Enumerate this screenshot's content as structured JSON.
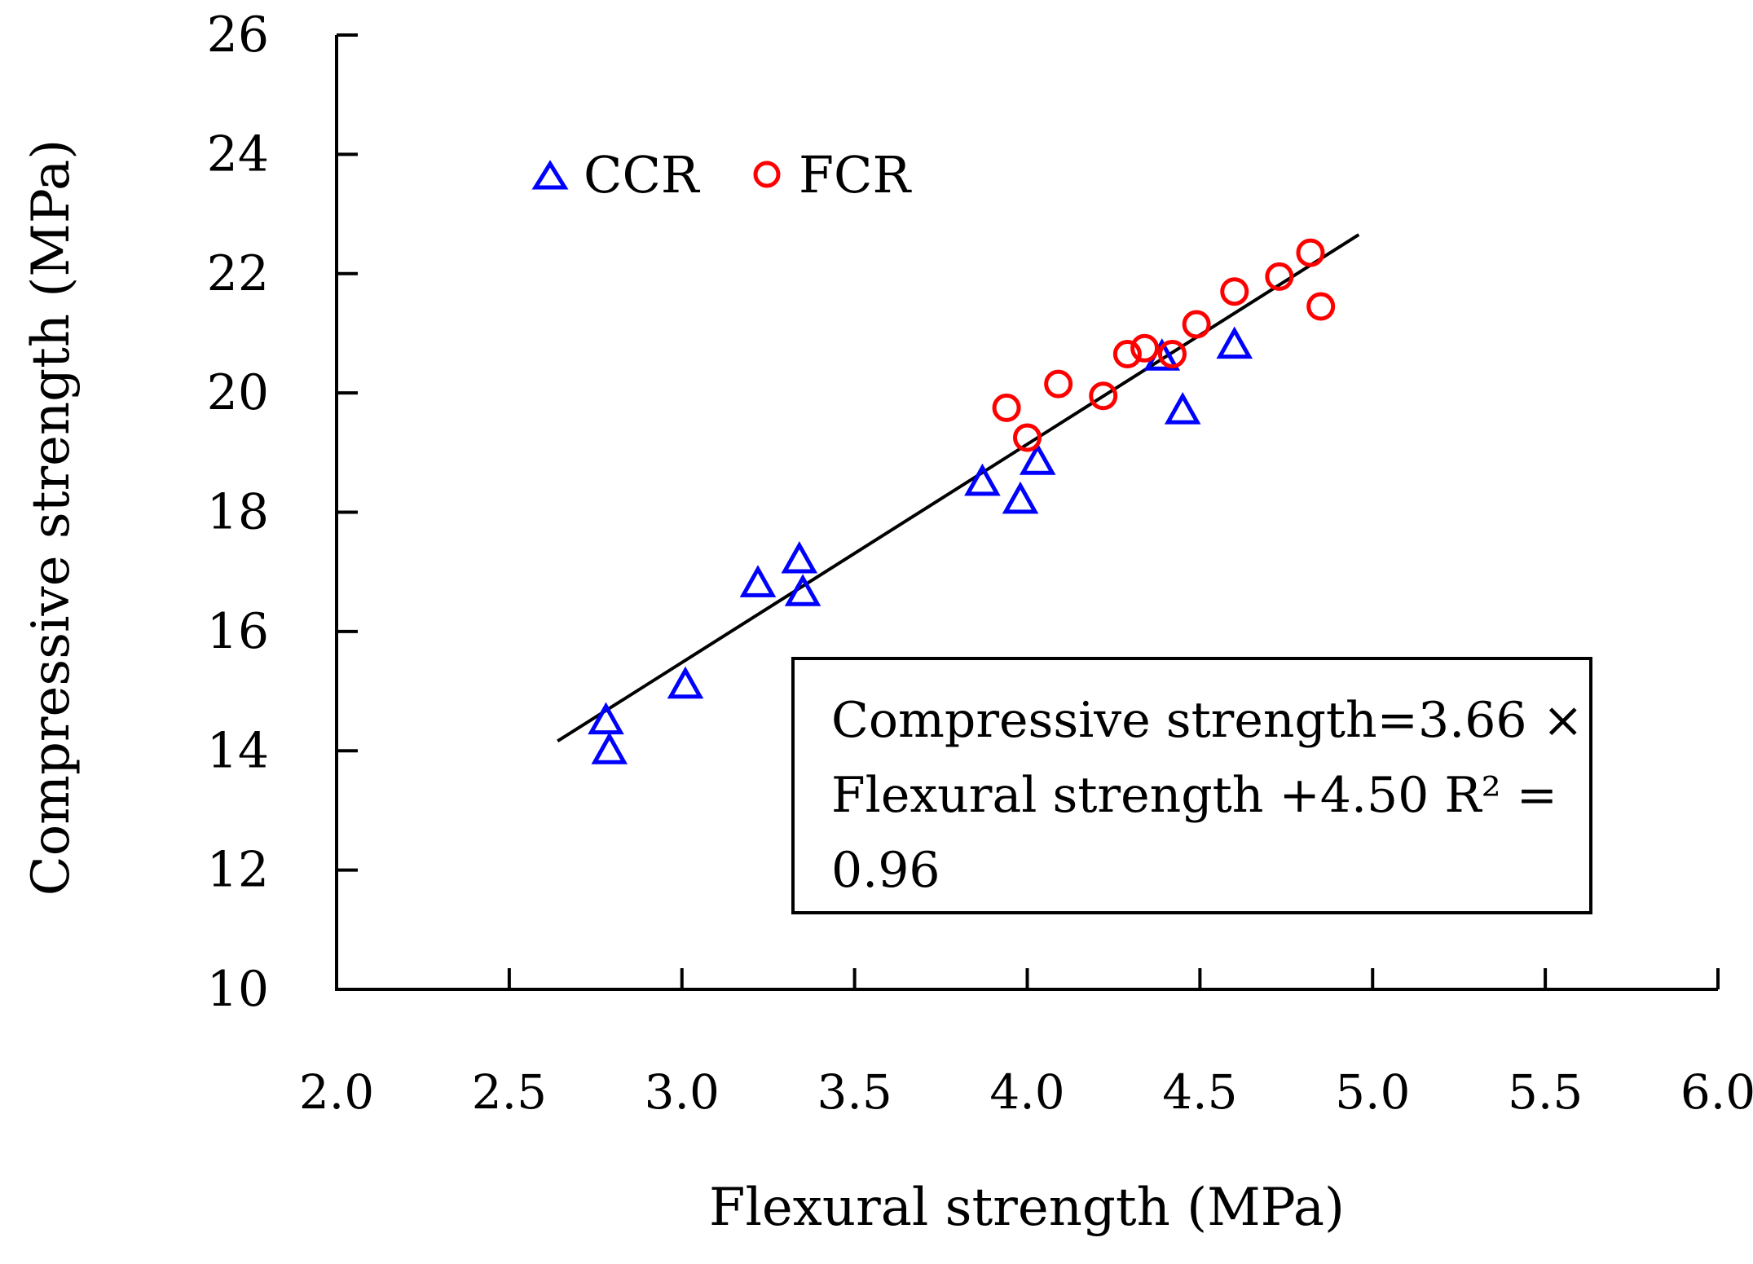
{
  "chart_data": {
    "type": "scatter",
    "title": "",
    "xlabel": "Flexural strength (MPa)",
    "ylabel": "Compressive strength (MPa)",
    "xlim": [
      2.0,
      6.0
    ],
    "ylim": [
      10,
      26
    ],
    "xticks": [
      "2.0",
      "2.5",
      "3.0",
      "3.5",
      "4.0",
      "4.5",
      "5.0",
      "5.5",
      "6.0"
    ],
    "yticks": [
      "10",
      "12",
      "14",
      "16",
      "18",
      "20",
      "22",
      "24",
      "26"
    ],
    "grid": false,
    "legend_position": "top-left",
    "series": [
      {
        "name": "CCR",
        "marker": "triangle",
        "color": "#0000ff",
        "points": [
          [
            2.78,
            14.5
          ],
          [
            2.79,
            14.0
          ],
          [
            3.01,
            15.1
          ],
          [
            3.22,
            16.8
          ],
          [
            3.34,
            17.2
          ],
          [
            3.35,
            16.65
          ],
          [
            3.87,
            18.5
          ],
          [
            3.98,
            18.2
          ],
          [
            4.03,
            18.85
          ],
          [
            4.39,
            20.6
          ],
          [
            4.45,
            19.7
          ],
          [
            4.6,
            20.8
          ]
        ]
      },
      {
        "name": "FCR",
        "marker": "circle",
        "color": "#ff0000",
        "points": [
          [
            3.94,
            19.75
          ],
          [
            4.0,
            19.25
          ],
          [
            4.09,
            20.15
          ],
          [
            4.22,
            19.95
          ],
          [
            4.29,
            20.65
          ],
          [
            4.34,
            20.75
          ],
          [
            4.42,
            20.65
          ],
          [
            4.49,
            21.15
          ],
          [
            4.6,
            21.7
          ],
          [
            4.73,
            21.95
          ],
          [
            4.82,
            22.35
          ],
          [
            4.85,
            21.45
          ]
        ]
      }
    ],
    "fit_line": {
      "slope": 3.66,
      "intercept": 4.5,
      "x_range": [
        2.64,
        4.96
      ],
      "color": "#000000"
    },
    "annotation": {
      "line1": "Compressive strength=3.66 ×",
      "line2": "Flexural strength +4.50   R² =",
      "line3": "0.96"
    }
  }
}
